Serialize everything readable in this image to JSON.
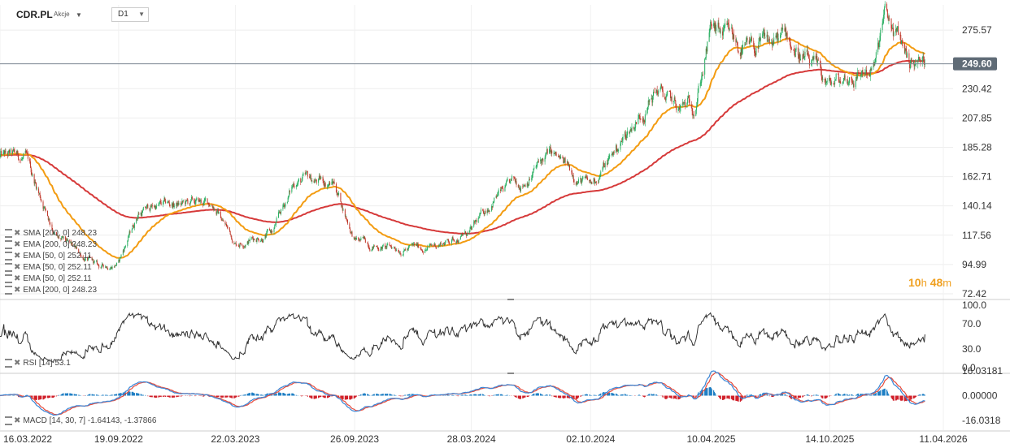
{
  "header": {
    "ticker": "CDR.PL",
    "instrument_type": "Akcje",
    "timeframe": "D1"
  },
  "countdown": {
    "hours": "10",
    "hours_unit": "h",
    "minutes": "48",
    "minutes_unit": "m"
  },
  "colors": {
    "ema_fast": "#f39c12",
    "ema_slow": "#d63a3a",
    "up_candle": "#27ae60",
    "down_candle": "#c0392b",
    "rsi_line": "#333333",
    "macd_line": "#3a86d6",
    "signal_line": "#e74c3c",
    "hist_pos": "#1f7fc4",
    "hist_neg": "#d0202a",
    "price_tag": "#5f6b76"
  },
  "legend": [
    "SMA [200, 0] 248.23",
    "EMA [200, 0] 248.23",
    "EMA [50, 0] 252.11",
    "EMA [50, 0] 252.11",
    "EMA [50, 0] 252.11",
    "EMA [200, 0] 248.23"
  ],
  "rsi_legend": "RSI [14] 53.1",
  "macd_legend": "MACD [14, 30, 7] -1.64143, -1.37866",
  "chart_data": [
    {
      "type": "candlestick",
      "title": "CDR.PL",
      "x_tick_labels": [
        "16.03.2022",
        "19.09.2022",
        "22.03.2023",
        "26.09.2023",
        "28.03.2024",
        "02.10.2024",
        "10.04.2025",
        "14.10.2025",
        "11.04.2026"
      ],
      "y_tick_labels": [
        "275.57",
        "230.42",
        "207.85",
        "185.28",
        "162.71",
        "140.14",
        "117.56",
        "94.99",
        "72.42"
      ],
      "ylim": [
        72.42,
        295
      ],
      "grid": true,
      "last_price": "249.60",
      "price_path_keypoints": [
        {
          "x": "2022-03-16",
          "y": 178
        },
        {
          "x": "2022-04-25",
          "y": 176
        },
        {
          "x": "2022-06-15",
          "y": 115
        },
        {
          "x": "2022-08-20",
          "y": 92
        },
        {
          "x": "2022-09-19",
          "y": 97
        },
        {
          "x": "2022-10-20",
          "y": 135
        },
        {
          "x": "2022-11-15",
          "y": 140
        },
        {
          "x": "2023-02-15",
          "y": 142
        },
        {
          "x": "2023-03-22",
          "y": 112
        },
        {
          "x": "2023-05-20",
          "y": 120
        },
        {
          "x": "2023-06-25",
          "y": 160
        },
        {
          "x": "2023-08-25",
          "y": 158
        },
        {
          "x": "2023-09-26",
          "y": 114
        },
        {
          "x": "2023-11-15",
          "y": 108
        },
        {
          "x": "2024-01-20",
          "y": 108
        },
        {
          "x": "2024-03-28",
          "y": 120
        },
        {
          "x": "2024-05-05",
          "y": 148
        },
        {
          "x": "2024-06-20",
          "y": 160
        },
        {
          "x": "2024-07-28",
          "y": 180
        },
        {
          "x": "2024-10-02",
          "y": 155
        },
        {
          "x": "2024-11-20",
          "y": 190
        },
        {
          "x": "2025-01-15",
          "y": 230
        },
        {
          "x": "2025-02-18",
          "y": 212
        },
        {
          "x": "2025-03-15",
          "y": 220
        },
        {
          "x": "2025-04-10",
          "y": 275
        },
        {
          "x": "2025-06-10",
          "y": 258
        },
        {
          "x": "2025-08-08",
          "y": 270
        },
        {
          "x": "2025-09-25",
          "y": 240
        },
        {
          "x": "2025-10-14",
          "y": 232
        },
        {
          "x": "2025-12-25",
          "y": 248
        },
        {
          "x": "2026-01-08",
          "y": 285
        },
        {
          "x": "2026-02-22",
          "y": 250
        },
        {
          "x": "2026-03-15",
          "y": 249.6
        }
      ],
      "series": [
        {
          "name": "EMA [50, 0]",
          "values_last": 252.11
        },
        {
          "name": "EMA [200, 0]",
          "values_last": 248.23
        },
        {
          "name": "SMA [200, 0]",
          "values_last": 248.23
        }
      ]
    },
    {
      "type": "line",
      "title": "RSI [14]",
      "y_tick_labels": [
        "100.0",
        "70.0",
        "30.0",
        "0.0"
      ],
      "ylim": [
        0,
        100
      ],
      "last_value": 53.1
    },
    {
      "type": "bar",
      "title": "MACD [14, 30, 7]",
      "y_tick_labels": [
        "16.03181",
        "0.00000",
        "-16.0318"
      ],
      "ylim": [
        -16.0318,
        16.03181
      ],
      "macd_last": -1.64143,
      "signal_last": -1.37866
    }
  ]
}
